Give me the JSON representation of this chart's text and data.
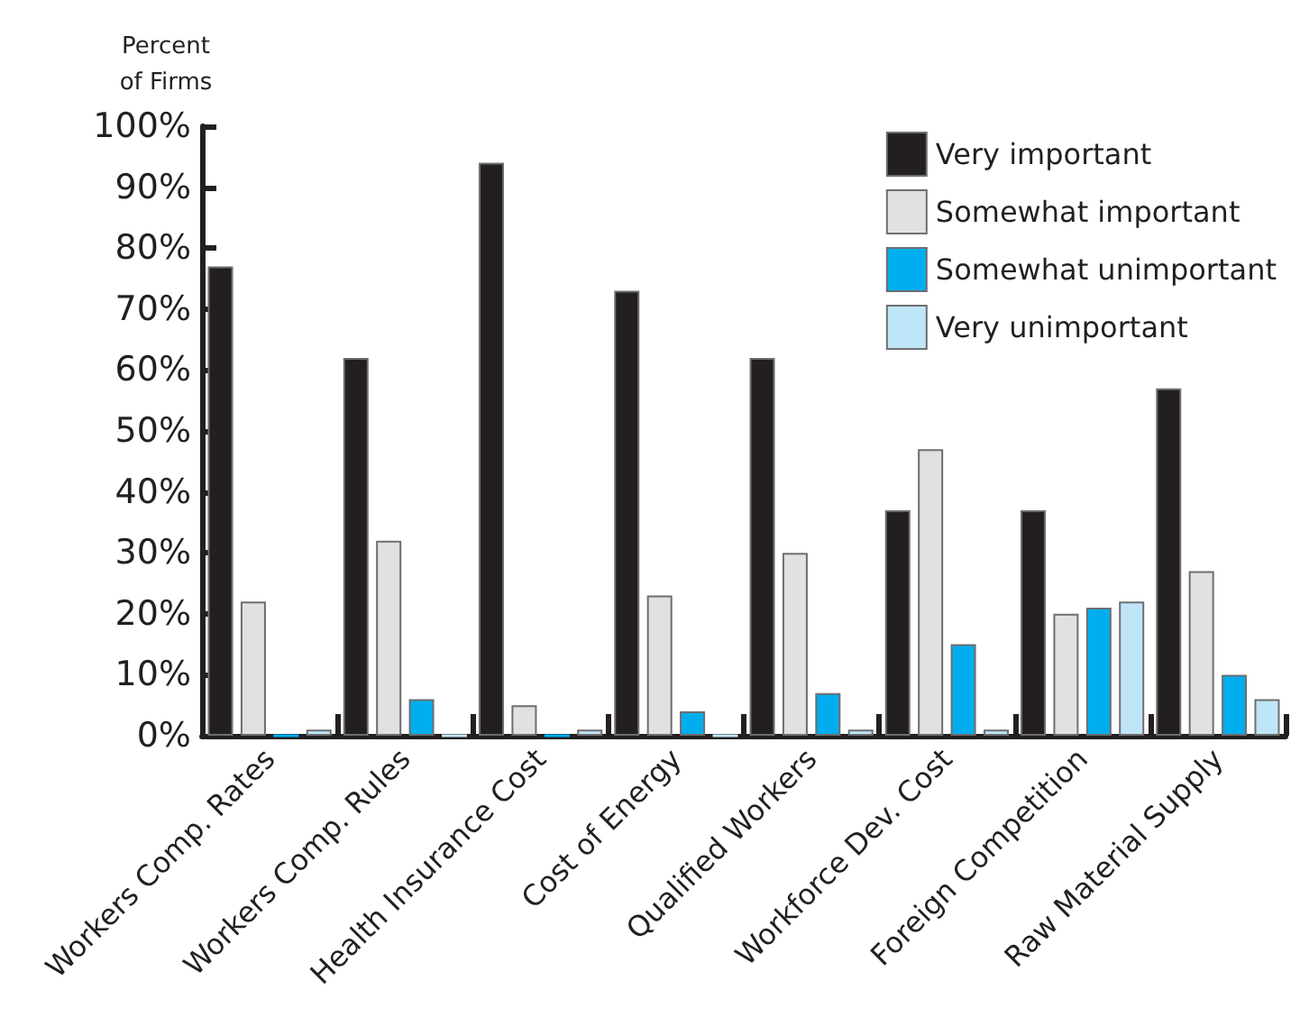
{
  "chart_data": {
    "type": "bar",
    "ylabel": "Percent\nof Firms",
    "categories": [
      "Workers Comp. Rates",
      "Workers Comp. Rules",
      "Health Insurance Cost",
      "Cost of Energy",
      "Qualified Workers",
      "Workforce Dev. Cost",
      "Foreign Competition",
      "Raw Material Supply"
    ],
    "series": [
      {
        "name": "Very important",
        "color": "#231f20",
        "values": [
          77,
          62,
          94,
          73,
          62,
          37,
          37,
          57
        ]
      },
      {
        "name": "Somewhat important",
        "color": "#e0e1e3",
        "values": [
          22,
          32,
          5,
          23,
          30,
          47,
          20,
          27
        ]
      },
      {
        "name": "Somewhat unimportant",
        "color": "#00aeef",
        "values": [
          0,
          6,
          0,
          4,
          7,
          15,
          21,
          10
        ]
      },
      {
        "name": "Very unimportant",
        "color": "#bfe6f8",
        "values": [
          1,
          0,
          1,
          0,
          1,
          1,
          22,
          6
        ]
      }
    ],
    "ylim": [
      0,
      100
    ],
    "yticks": [
      {
        "value": 0,
        "label": "0%"
      },
      {
        "value": 10,
        "label": "10%"
      },
      {
        "value": 20,
        "label": "20%"
      },
      {
        "value": 30,
        "label": "30%"
      },
      {
        "value": 40,
        "label": "40%"
      },
      {
        "value": 50,
        "label": "50%"
      },
      {
        "value": 60,
        "label": "60%"
      },
      {
        "value": 70,
        "label": "70%"
      },
      {
        "value": 80,
        "label": "80%"
      },
      {
        "value": 90,
        "label": "90%"
      },
      {
        "value": 100,
        "label": "100%"
      }
    ],
    "grid": false,
    "legend": "top right"
  }
}
